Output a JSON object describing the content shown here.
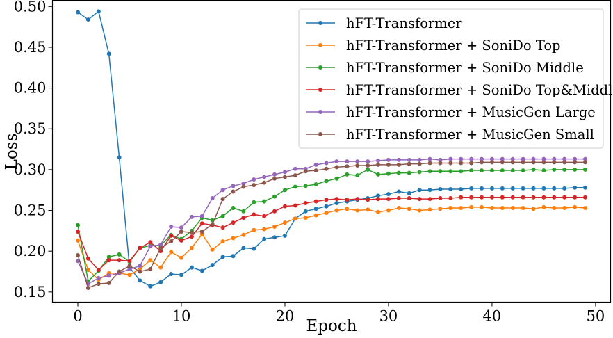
{
  "chart_data": {
    "type": "line",
    "title": "",
    "xlabel": "Epoch",
    "ylabel": "Loss",
    "xlim": [
      -2.45,
      51.45
    ],
    "ylim": [
      0.1375,
      0.5075
    ],
    "xticks": [
      0,
      10,
      20,
      30,
      40,
      50
    ],
    "xtick_labels": [
      "0",
      "10",
      "20",
      "30",
      "40",
      "50"
    ],
    "yticks": [
      0.15,
      0.2,
      0.25,
      0.3,
      0.35,
      0.4,
      0.45,
      0.5
    ],
    "ytick_labels": [
      "0.15",
      "0.20",
      "0.25",
      "0.30",
      "0.35",
      "0.40",
      "0.45",
      "0.50"
    ],
    "grid": false,
    "legend_position": "top-right",
    "x": [
      0,
      1,
      2,
      3,
      4,
      5,
      6,
      7,
      8,
      9,
      10,
      11,
      12,
      13,
      14,
      15,
      16,
      17,
      18,
      19,
      20,
      21,
      22,
      23,
      24,
      25,
      26,
      27,
      28,
      29,
      30,
      31,
      32,
      33,
      34,
      35,
      36,
      37,
      38,
      39,
      40,
      41,
      42,
      43,
      44,
      45,
      46,
      47,
      48,
      49
    ],
    "series": [
      {
        "name": "hFT-Transformer",
        "color": "#1f77b4",
        "values": [
          0.493,
          0.484,
          0.494,
          0.442,
          0.315,
          0.18,
          0.164,
          0.157,
          0.162,
          0.172,
          0.171,
          0.18,
          0.176,
          0.183,
          0.193,
          0.194,
          0.204,
          0.203,
          0.215,
          0.217,
          0.219,
          0.24,
          0.249,
          0.252,
          0.255,
          0.259,
          0.261,
          0.263,
          0.265,
          0.268,
          0.27,
          0.273,
          0.271,
          0.275,
          0.275,
          0.276,
          0.276,
          0.276,
          0.277,
          0.277,
          0.277,
          0.277,
          0.277,
          0.277,
          0.277,
          0.277,
          0.277,
          0.277,
          0.278,
          0.278
        ]
      },
      {
        "name": "hFT-Transformer + SoniDo Top",
        "color": "#ff7f0e",
        "values": [
          0.213,
          0.177,
          0.165,
          0.173,
          0.173,
          0.171,
          0.178,
          0.189,
          0.18,
          0.199,
          0.192,
          0.204,
          0.221,
          0.202,
          0.212,
          0.216,
          0.22,
          0.226,
          0.227,
          0.23,
          0.235,
          0.24,
          0.241,
          0.244,
          0.247,
          0.25,
          0.252,
          0.25,
          0.251,
          0.248,
          0.25,
          0.253,
          0.252,
          0.25,
          0.251,
          0.252,
          0.253,
          0.253,
          0.254,
          0.254,
          0.253,
          0.253,
          0.253,
          0.253,
          0.252,
          0.254,
          0.253,
          0.253,
          0.254,
          0.253
        ]
      },
      {
        "name": "hFT-Transformer + SoniDo Middle",
        "color": "#2ca02c",
        "values": [
          0.232,
          0.163,
          0.176,
          0.193,
          0.196,
          0.187,
          0.204,
          0.207,
          0.207,
          0.22,
          0.215,
          0.225,
          0.241,
          0.238,
          0.243,
          0.253,
          0.249,
          0.26,
          0.261,
          0.267,
          0.275,
          0.279,
          0.28,
          0.282,
          0.286,
          0.289,
          0.294,
          0.293,
          0.3,
          0.294,
          0.295,
          0.296,
          0.296,
          0.297,
          0.298,
          0.298,
          0.298,
          0.298,
          0.299,
          0.299,
          0.299,
          0.299,
          0.299,
          0.299,
          0.3,
          0.299,
          0.3,
          0.3,
          0.3,
          0.3
        ]
      },
      {
        "name": "hFT-Transformer + SoniDo Top&Middle",
        "color": "#d62728",
        "values": [
          0.224,
          0.191,
          0.177,
          0.189,
          0.189,
          0.188,
          0.204,
          0.211,
          0.2,
          0.219,
          0.213,
          0.218,
          0.234,
          0.232,
          0.229,
          0.235,
          0.241,
          0.245,
          0.243,
          0.249,
          0.255,
          0.256,
          0.259,
          0.261,
          0.263,
          0.264,
          0.263,
          0.264,
          0.263,
          0.264,
          0.264,
          0.265,
          0.265,
          0.264,
          0.264,
          0.265,
          0.265,
          0.266,
          0.266,
          0.266,
          0.266,
          0.266,
          0.266,
          0.266,
          0.266,
          0.266,
          0.266,
          0.266,
          0.266,
          0.266
        ]
      },
      {
        "name": "hFT-Transformer + MusicGen Large",
        "color": "#9467bd",
        "values": [
          0.188,
          0.16,
          0.167,
          0.17,
          0.173,
          0.178,
          0.182,
          0.206,
          0.208,
          0.23,
          0.229,
          0.242,
          0.243,
          0.265,
          0.275,
          0.28,
          0.283,
          0.288,
          0.291,
          0.294,
          0.297,
          0.301,
          0.301,
          0.306,
          0.308,
          0.31,
          0.31,
          0.31,
          0.31,
          0.311,
          0.312,
          0.312,
          0.312,
          0.312,
          0.313,
          0.312,
          0.313,
          0.313,
          0.313,
          0.313,
          0.313,
          0.313,
          0.313,
          0.313,
          0.313,
          0.313,
          0.313,
          0.313,
          0.313,
          0.313
        ]
      },
      {
        "name": "hFT-Transformer + MusicGen Small",
        "color": "#8c564b",
        "values": [
          0.195,
          0.155,
          0.16,
          0.161,
          0.175,
          0.182,
          0.175,
          0.178,
          0.204,
          0.212,
          0.224,
          0.223,
          0.224,
          0.233,
          0.264,
          0.273,
          0.279,
          0.281,
          0.284,
          0.289,
          0.291,
          0.293,
          0.298,
          0.299,
          0.301,
          0.303,
          0.304,
          0.305,
          0.305,
          0.306,
          0.306,
          0.306,
          0.307,
          0.307,
          0.308,
          0.308,
          0.308,
          0.308,
          0.308,
          0.309,
          0.309,
          0.309,
          0.309,
          0.309,
          0.309,
          0.309,
          0.309,
          0.309,
          0.309,
          0.309
        ]
      }
    ]
  }
}
